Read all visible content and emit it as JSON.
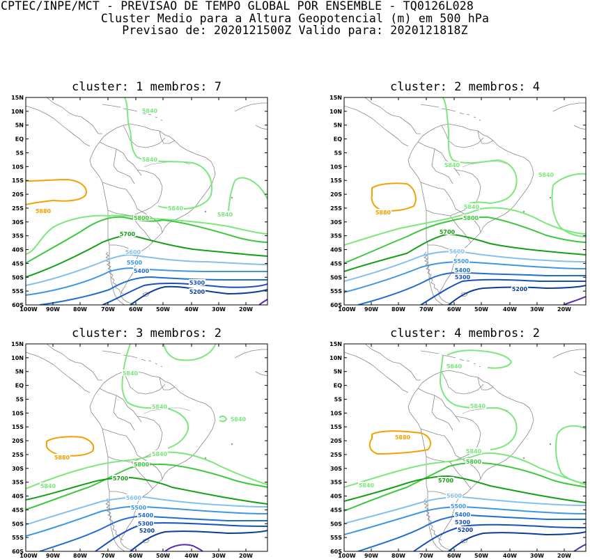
{
  "header": {
    "line1": "CPTEC/INPE/MCT - PREVISAO DE TEMPO GLOBAL POR ENSEMBLE - TQ0126L028",
    "line2": "Cluster Medio para a Altura Geopotencial (m) em 500 hPa",
    "line3": "Previsao de: 2020121500Z   Valido para: 2020121818Z"
  },
  "axes": {
    "lat_labels": [
      "15N",
      "10N",
      "5N",
      "EQ",
      "5S",
      "10S",
      "15S",
      "20S",
      "25S",
      "30S",
      "35S",
      "40S",
      "45S",
      "50S",
      "55S",
      "60S"
    ],
    "lon_labels": [
      "100W",
      "90W",
      "80W",
      "70W",
      "60W",
      "50W",
      "40W",
      "30W",
      "20W"
    ]
  },
  "colors": {
    "c5880": "#f5a000",
    "c5840": "#7ae87a",
    "c5800": "#3cc83c",
    "c5700": "#14a014",
    "c5600": "#82c0f0",
    "c5500": "#3c96e6",
    "c5400": "#1e6ed2",
    "c5300": "#1450be",
    "c5200": "#0a3c9c",
    "c5100": "#5a28b4",
    "coast": "#888888"
  },
  "panels": [
    {
      "title": "cluster: 1   membros: 7",
      "labels": {
        "5880": "5880",
        "5840a": "5840",
        "5840b": "5840",
        "5840c": "5840",
        "5840d": "5840",
        "5800": "5800",
        "5700": "5700",
        "5600": "5600",
        "5500": "5500",
        "5400": "5400",
        "5300": "5300",
        "5200": "5200"
      }
    },
    {
      "title": "cluster: 2   membros: 4",
      "labels": {
        "5880": "5880",
        "5840a": "5840",
        "5840b": "5840",
        "5840c": "5840",
        "5800": "5800",
        "5700": "5700",
        "5600": "5600",
        "5500": "5500",
        "5400": "5400",
        "5300": "5300",
        "5200": "5200"
      }
    },
    {
      "title": "cluster: 3   membros: 2",
      "labels": {
        "5880": "5880",
        "5840a": "5840",
        "5840b": "5840",
        "5840c": "5840",
        "5840d": "5840",
        "5840e": "5840",
        "5800": "5800",
        "5700": "5700",
        "5600": "5600",
        "5500": "5500",
        "5400": "5400",
        "5300": "5300",
        "5200": "5200"
      }
    },
    {
      "title": "cluster: 4   membros: 2",
      "labels": {
        "5880": "5880",
        "5840a": "5840",
        "5840b": "5840",
        "5840c": "5840",
        "5840d": "5840",
        "5800": "5800",
        "5700": "5700",
        "5600": "5600",
        "5500": "5500",
        "5400": "5400",
        "5300": "5300",
        "5200": "5200"
      }
    }
  ]
}
